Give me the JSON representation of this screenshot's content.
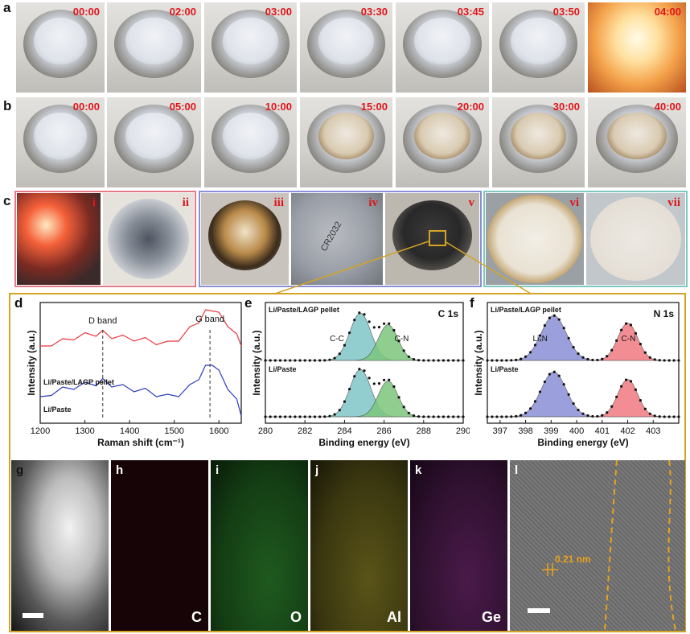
{
  "panel_labels": {
    "a": "a",
    "b": "b",
    "c": "c",
    "d": "d",
    "e": "e",
    "f": "f",
    "g": "g",
    "h": "h",
    "i": "i",
    "j": "j",
    "k": "k",
    "l": "l"
  },
  "row_a_times": [
    "00:00",
    "02:00",
    "03:00",
    "03:30",
    "03:45",
    "03:50",
    "04:00"
  ],
  "row_b_times": [
    "00:00",
    "05:00",
    "10:00",
    "15:00",
    "20:00",
    "30:00",
    "40:00"
  ],
  "row_c_numerals": [
    "i",
    "ii",
    "iii",
    "iv",
    "v",
    "vi",
    "vii"
  ],
  "coin_cell_text": "CR2032",
  "colors": {
    "red_frame": "#e37b86",
    "blue_frame": "#8a8fd6",
    "teal_frame": "#7ec8c2",
    "callout": "#d6a425",
    "time_red": "#e0151b"
  },
  "microscopy": {
    "elements": [
      "C",
      "O",
      "Al",
      "Ge"
    ],
    "lattice_label": "0.21 nm"
  },
  "chart_data": [
    {
      "panel": "d",
      "type": "line",
      "xlabel": "Raman shift (cm⁻¹)",
      "ylabel": "Intensity (a.u.)",
      "xlim": [
        1200,
        1650
      ],
      "xticks": [
        1200,
        1300,
        1400,
        1500,
        1600
      ],
      "annotations": [
        "D band",
        "G band"
      ],
      "band_positions": [
        1340,
        1580
      ],
      "series": [
        {
          "name": "Li/Paste/LAGP pellet",
          "color": "#e8383d",
          "x": [
            1200,
            1225,
            1250,
            1275,
            1300,
            1325,
            1340,
            1360,
            1385,
            1410,
            1435,
            1460,
            1485,
            1510,
            1535,
            1555,
            1570,
            1585,
            1600,
            1620,
            1640,
            1650
          ],
          "y": [
            0.62,
            0.66,
            0.68,
            0.71,
            0.73,
            0.74,
            0.75,
            0.72,
            0.71,
            0.7,
            0.69,
            0.67,
            0.66,
            0.7,
            0.78,
            0.85,
            0.92,
            0.95,
            0.9,
            0.82,
            0.72,
            0.66
          ]
        },
        {
          "name": "Li/Paste",
          "color": "#2b3bbf",
          "x": [
            1200,
            1225,
            1250,
            1275,
            1300,
            1325,
            1340,
            1360,
            1385,
            1410,
            1435,
            1460,
            1485,
            1510,
            1535,
            1555,
            1570,
            1585,
            1600,
            1620,
            1640,
            1650
          ],
          "y": [
            0.2,
            0.25,
            0.28,
            0.3,
            0.32,
            0.33,
            0.35,
            0.32,
            0.3,
            0.28,
            0.27,
            0.24,
            0.22,
            0.24,
            0.3,
            0.38,
            0.46,
            0.5,
            0.42,
            0.3,
            0.18,
            0.08
          ]
        }
      ]
    },
    {
      "panel": "e",
      "type": "line",
      "title": "C 1s",
      "xlabel": "Binding energy (eV)",
      "ylabel": "Intensity (a.u.)",
      "xlim": [
        280,
        290
      ],
      "xticks": [
        280,
        282,
        284,
        286,
        288,
        290
      ],
      "peaks": [
        {
          "name": "C-C",
          "center": 284.8,
          "color": "#7fc6c8"
        },
        {
          "name": "C-N",
          "center": 286.2,
          "color": "#7bc67b"
        }
      ],
      "series": [
        {
          "name": "Li/Paste/LAGP pellet"
        },
        {
          "name": "Li/Paste"
        }
      ]
    },
    {
      "panel": "f",
      "type": "line",
      "title": "N 1s",
      "xlabel": "Binding energy (eV)",
      "ylabel": "Intensity (a.u.)",
      "xlim": [
        396.5,
        404
      ],
      "xticks": [
        397,
        398,
        399,
        400,
        401,
        402,
        403
      ],
      "peaks": [
        {
          "name": "LiₓN",
          "center": 399.1,
          "color": "#8a8fd6"
        },
        {
          "name": "C-N",
          "center": 402.0,
          "color": "#f07a80"
        }
      ],
      "series": [
        {
          "name": "Li/Paste/LAGP pellet"
        },
        {
          "name": "Li/Paste"
        }
      ]
    }
  ]
}
